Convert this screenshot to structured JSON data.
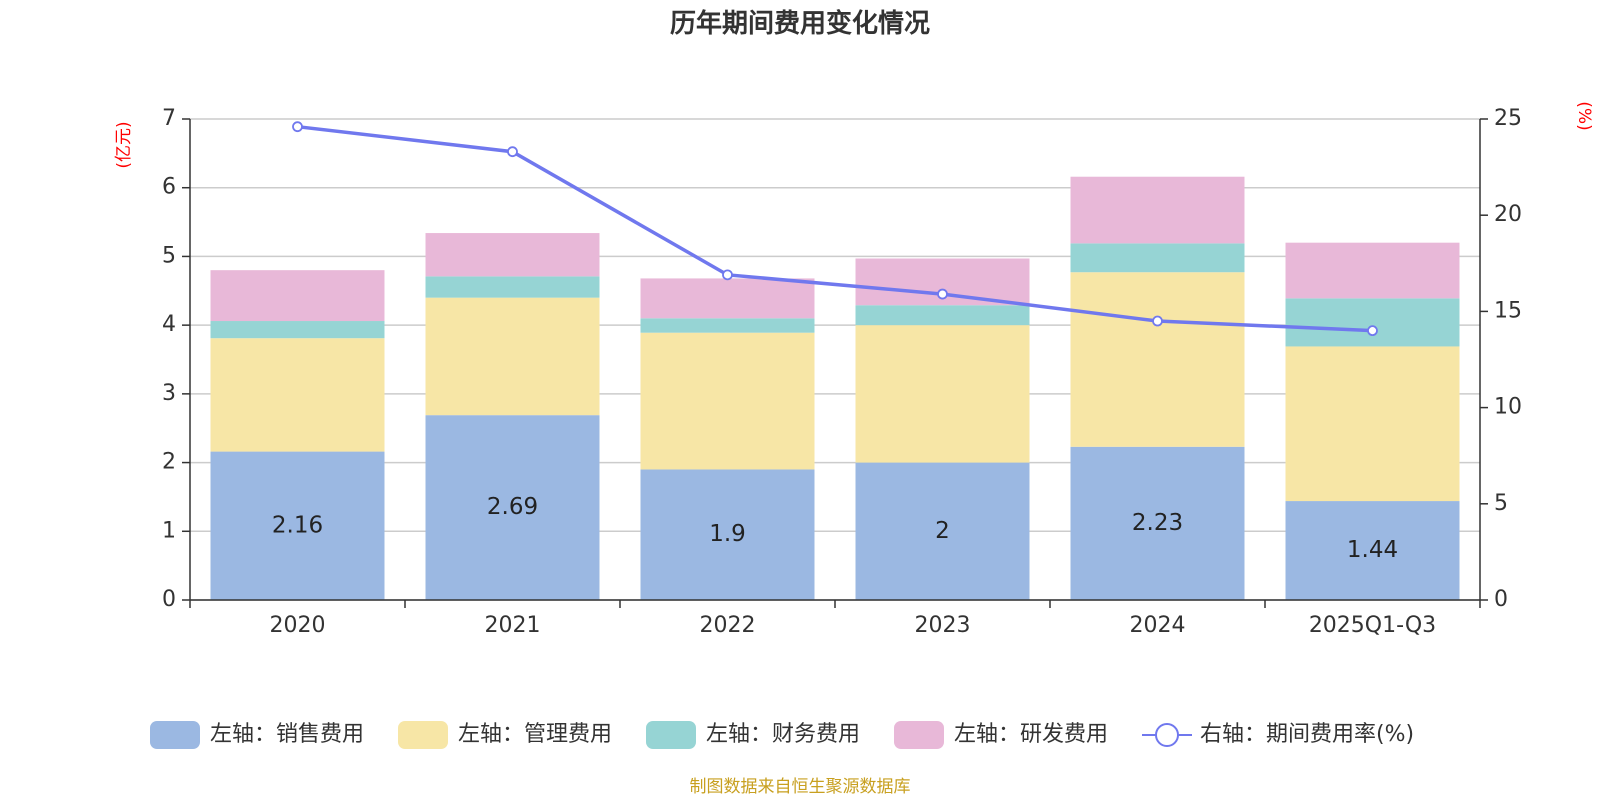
{
  "chart_data": {
    "type": "bar",
    "stacked": true,
    "title": "历年期间费用变化情况",
    "categories": [
      "2020",
      "2021",
      "2022",
      "2023",
      "2024",
      "2025Q1-Q3"
    ],
    "left_axis": {
      "unit": "(亿元)",
      "ylim": [
        0,
        7
      ],
      "ticks": [
        "0",
        "1",
        "2",
        "3",
        "4",
        "5",
        "6",
        "7"
      ]
    },
    "right_axis": {
      "unit": "(%)",
      "ylim": [
        0,
        25
      ],
      "ticks": [
        "0",
        "5",
        "10",
        "15",
        "20",
        "25"
      ]
    },
    "series": [
      {
        "name": "左轴：销售费用",
        "axis": "left",
        "color": "#9bb8e2",
        "values": [
          2.16,
          2.69,
          1.9,
          2,
          2.23,
          1.44
        ],
        "labels": [
          "2.16",
          "2.69",
          "1.9",
          "2",
          "2.23",
          "1.44"
        ]
      },
      {
        "name": "左轴：管理费用",
        "axis": "left",
        "color": "#f7e6a6",
        "values": [
          1.65,
          1.71,
          1.99,
          2.0,
          2.54,
          2.25
        ]
      },
      {
        "name": "左轴：财务费用",
        "axis": "left",
        "color": "#96d4d4",
        "values": [
          0.25,
          0.31,
          0.21,
          0.29,
          0.42,
          0.7
        ]
      },
      {
        "name": "左轴：研发费用",
        "axis": "left",
        "color": "#e8b8d8",
        "values": [
          0.74,
          0.63,
          0.58,
          0.68,
          0.97,
          0.81
        ]
      },
      {
        "name": "右轴：期间费用率(%)",
        "axis": "right",
        "type": "line",
        "color": "#7078ee",
        "values": [
          24.6,
          23.3,
          16.9,
          15.9,
          14.5,
          14.0
        ]
      }
    ],
    "source": "制图数据来自恒生聚源数据库"
  }
}
